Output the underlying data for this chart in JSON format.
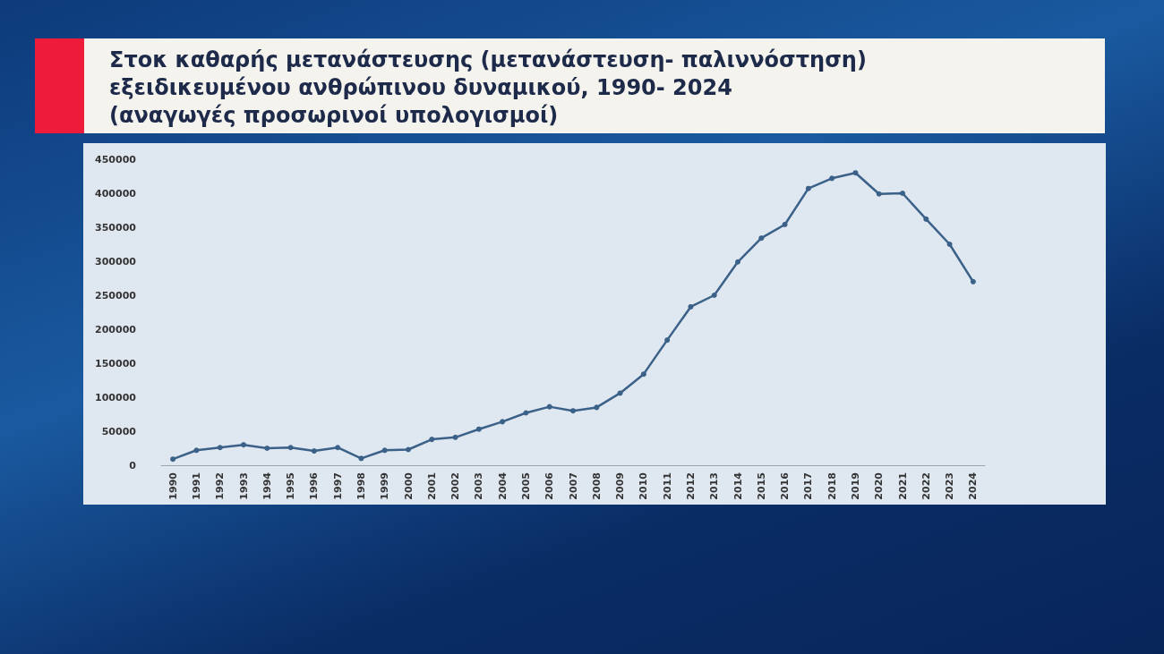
{
  "chart_data": {
    "type": "line",
    "title": "Στοκ καθαρής μετανάστευσης (μετανάστευση- παλιννόστηση)\nεξειδικευμένου ανθρώπινου δυναμικού, 1990- 2024\n(αναγωγές προσωρινοί υπολογισμοί)",
    "categories": [
      "1990",
      "1991",
      "1992",
      "1993",
      "1994",
      "1995",
      "1996",
      "1997",
      "1998",
      "1999",
      "2000",
      "2001",
      "2002",
      "2003",
      "2004",
      "2005",
      "2006",
      "2007",
      "2008",
      "2009",
      "2010",
      "2011",
      "2012",
      "2013",
      "2014",
      "2015",
      "2016",
      "2017",
      "2018",
      "2019",
      "2020",
      "2021",
      "2022",
      "2023",
      "2024"
    ],
    "series": [
      {
        "color": "#3b6188",
        "values": [
          9000,
          22000,
          26000,
          30000,
          25000,
          26000,
          21000,
          26000,
          10000,
          22000,
          23000,
          38000,
          41000,
          53000,
          64000,
          77000,
          86000,
          80000,
          85000,
          106000,
          134000,
          184000,
          233000,
          250000,
          299000,
          334000,
          354000,
          407000,
          422000,
          430000,
          399000,
          400000,
          362000,
          325000,
          270000
        ]
      }
    ],
    "ylim": [
      0,
      450000
    ],
    "yticks": [
      0,
      50000,
      100000,
      150000,
      200000,
      250000,
      300000,
      350000,
      400000,
      450000
    ],
    "grid": false,
    "marker": "circle",
    "line_style": "solid"
  }
}
